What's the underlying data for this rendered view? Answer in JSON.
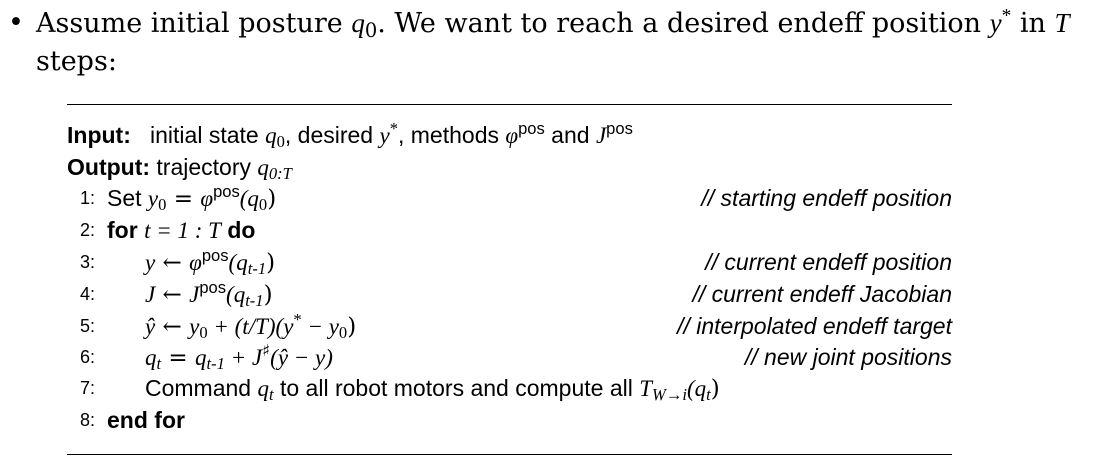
{
  "intro": {
    "bullet": "•",
    "pre": "Assume initial posture ",
    "q0": "q",
    "q0_sub": "0",
    "mid": ". We want to reach a desired endeff position ",
    "y": "y",
    "y_sup": "*",
    "in": " in ",
    "T": "T",
    "end": "steps:"
  },
  "algorithm": {
    "input": {
      "label": "Input:",
      "text_a": "initial state ",
      "q": "q",
      "q_sub": "0",
      "text_b": ", desired ",
      "y": "y",
      "y_sup": "*",
      "text_c": ", methods ",
      "phi": "φ",
      "phi_sup": "pos",
      "text_d": " and ",
      "J": "J",
      "J_sup": "pos"
    },
    "output": {
      "label": "Output:",
      "text": "trajectory ",
      "q": "q",
      "q_sub": "0:T"
    },
    "lines": [
      {
        "num": "1:",
        "comment": "// starting endeff position"
      },
      {
        "num": "2:",
        "comment": ""
      },
      {
        "num": "3:",
        "comment": "// current endeff position"
      },
      {
        "num": "4:",
        "comment": "// current endeff Jacobian"
      },
      {
        "num": "5:",
        "comment": "// interpolated endeff target"
      },
      {
        "num": "6:",
        "comment": "// new joint positions"
      },
      {
        "num": "7:",
        "comment": ""
      },
      {
        "num": "8:",
        "comment": ""
      }
    ],
    "line1": {
      "kw": "Set ",
      "lhs": "y",
      "lhs_sub": "0",
      "eq": " = ",
      "phi": "φ",
      "phi_sup": "pos",
      "arg": "(q",
      "arg_sub": "0",
      "close": ")"
    },
    "line2": {
      "kw_for": "for ",
      "expr": "t = 1 : T",
      "kw_do": " do"
    },
    "line3": {
      "lhs": "y",
      "arrow": " ← ",
      "phi": "φ",
      "phi_sup": "pos",
      "arg": "(q",
      "arg_sub": "t-1",
      "close": ")"
    },
    "line4": {
      "lhs": "J",
      "arrow": " ← ",
      "J": "J",
      "J_sup": "pos",
      "arg": "(q",
      "arg_sub": "t-1",
      "close": ")"
    },
    "line5": {
      "lhs": "ŷ",
      "arrow": " ← ",
      "y": "y",
      "y_sub": "0",
      "rest": " + (t/T)(y",
      "ystar": "*",
      "rest2": " − y",
      "y2_sub": "0",
      "close": ")"
    },
    "line6": {
      "lhs": "q",
      "lhs_sub": "t",
      "eq": " = ",
      "q": "q",
      "q_sub": "t-1",
      "plus": " + J",
      "sharp": "♯",
      "rest": "(ŷ − y)"
    },
    "line7": {
      "pre": "Command ",
      "q": "q",
      "q_sub": "t",
      "mid": " to all robot motors and compute all ",
      "T": "T",
      "T_sub": "W→i",
      "arg": "(q",
      "arg_sub": "t",
      "close": ")"
    },
    "line8": {
      "kw": "end for"
    }
  }
}
